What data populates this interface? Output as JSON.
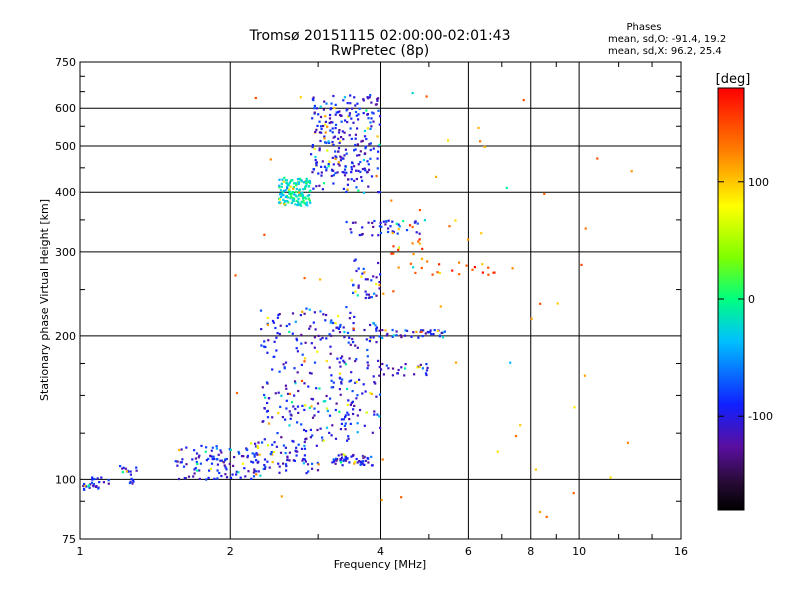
{
  "header": {
    "title": "Tromsø 20151115 02:00:00-02:01:43",
    "subtitle": "RwPretec (8p)"
  },
  "stats": {
    "heading": "Phases",
    "line_o": "mean, sd,O: -91.4, 19.2",
    "line_x": "mean, sd,X: 96.2, 25.4"
  },
  "colorbar": {
    "unit": "[deg]",
    "ticks": [
      "100",
      "0",
      "-100"
    ],
    "tick_values": [
      100,
      0,
      -100
    ],
    "range": [
      -180,
      180
    ]
  },
  "chart_data": {
    "type": "scatter",
    "title": "Tromsø 20151115 02:00:00-02:01:43",
    "subtitle": "RwPretec (8p)",
    "xlabel": "Frequency [MHz]",
    "ylabel": "Stationary phase Virtual Height [km]",
    "x_scale": "log",
    "y_scale": "log",
    "xlim": [
      1,
      16
    ],
    "ylim": [
      75,
      750
    ],
    "x_ticks": [
      1,
      2,
      4,
      6,
      8,
      10,
      16
    ],
    "x_tick_labels": [
      "1",
      "2",
      "4",
      "6",
      "8",
      "10",
      "16"
    ],
    "y_ticks": [
      75,
      100,
      200,
      300,
      400,
      500,
      600,
      750
    ],
    "y_tick_labels": [
      "75",
      "100",
      "200",
      "300",
      "400",
      "500",
      "600",
      "750"
    ],
    "grid": true,
    "color_encoding": "phase (deg)",
    "clusters": [
      {
        "freq": [
          1.0,
          1.15
        ],
        "height": [
          95,
          101
        ],
        "phase": -100,
        "n": 28
      },
      {
        "freq": [
          1.2,
          1.3
        ],
        "height": [
          98,
          107
        ],
        "phase": -100,
        "n": 18
      },
      {
        "freq": [
          1.55,
          2.3
        ],
        "height": [
          100,
          118
        ],
        "phase": -100,
        "n": 110
      },
      {
        "freq": [
          2.2,
          3.0
        ],
        "height": [
          103,
          120
        ],
        "phase": -100,
        "n": 70
      },
      {
        "freq": [
          2.3,
          3.6
        ],
        "height": [
          120,
          230
        ],
        "phase": -100,
        "n": 220
      },
      {
        "freq": [
          3.2,
          3.9
        ],
        "height": [
          107,
          113
        ],
        "phase": -100,
        "n": 55
      },
      {
        "freq": [
          3.3,
          4.0
        ],
        "height": [
          125,
          215
        ],
        "phase": -100,
        "n": 80
      },
      {
        "freq": [
          3.5,
          4.0
        ],
        "height": [
          240,
          290
        ],
        "phase": -100,
        "n": 35
      },
      {
        "freq": [
          3.4,
          4.8
        ],
        "height": [
          325,
          350
        ],
        "phase": -100,
        "n": 40
      },
      {
        "freq": [
          3.8,
          5.5
        ],
        "height": [
          198,
          206
        ],
        "phase": -100,
        "n": 45
      },
      {
        "freq": [
          4.0,
          5.0
        ],
        "height": [
          165,
          175
        ],
        "phase": -100,
        "n": 25
      },
      {
        "freq": [
          2.5,
          2.9
        ],
        "height": [
          375,
          430
        ],
        "phase": -15,
        "n": 150
      },
      {
        "freq": [
          2.9,
          4.0
        ],
        "height": [
          400,
          640
        ],
        "phase": -100,
        "n": 260
      },
      {
        "freq": [
          4.2,
          5.0
        ],
        "height": [
          270,
          350
        ],
        "phase": 140,
        "n": 25
      },
      {
        "freq": [
          5.0,
          6.8
        ],
        "height": [
          268,
          285
        ],
        "phase": 150,
        "n": 15
      },
      {
        "freq": [
          2.0,
          13.0
        ],
        "height": [
          80,
          660
        ],
        "phase": 120,
        "n": 70
      }
    ]
  }
}
